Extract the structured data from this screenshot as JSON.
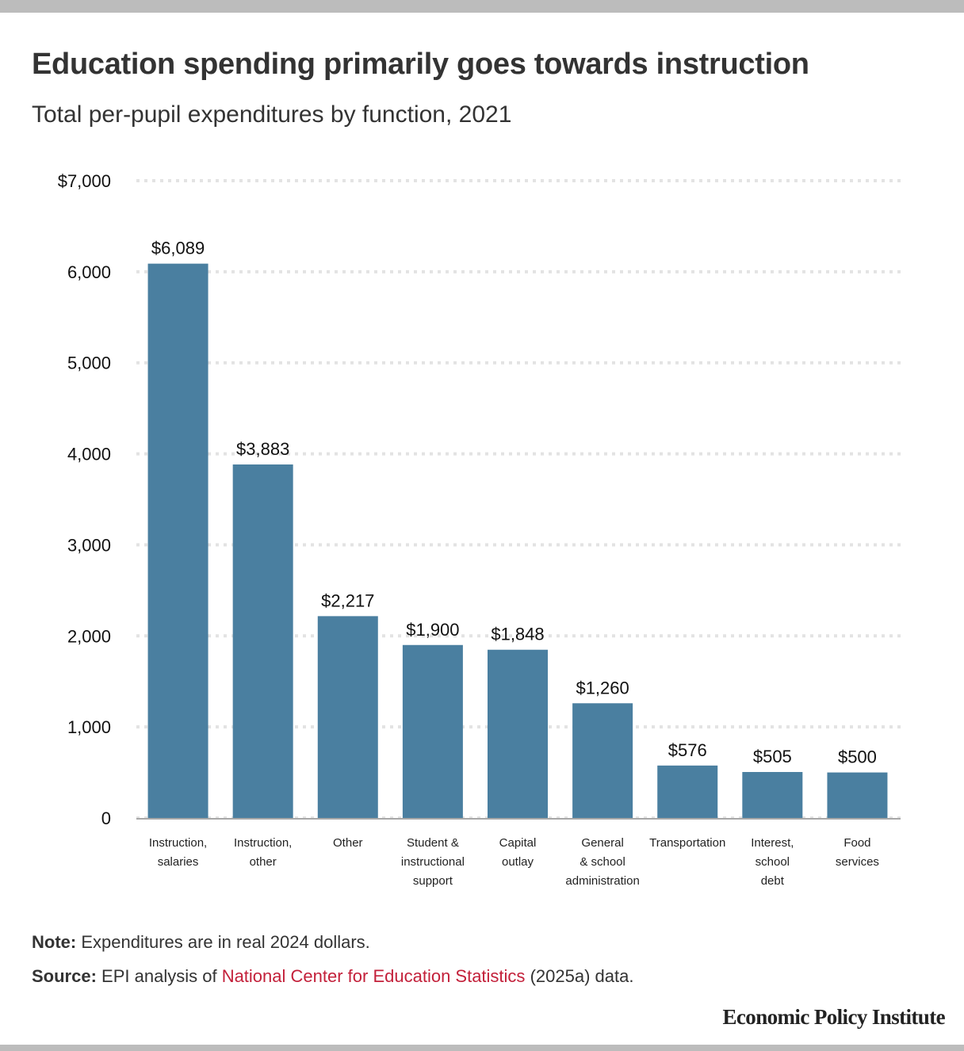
{
  "title": "Education spending primarily goes towards instruction",
  "subtitle": "Total per-pupil expenditures by function, 2021",
  "note": {
    "label": "Note:",
    "text": "Expenditures are in real 2024 dollars."
  },
  "source": {
    "label": "Source:",
    "prefix": "EPI analysis of",
    "link_text": "National Center for Education Statistics",
    "suffix": "(2025a) data."
  },
  "brand": "Economic Policy Institute",
  "colors": {
    "bar": "#4a7fa0",
    "grid": "#e3e3e3",
    "baseline": "#a8a8a8",
    "link": "#c3203a"
  },
  "chart_data": {
    "type": "bar",
    "title": "Education spending primarily goes towards instruction",
    "subtitle": "Total per-pupil expenditures by function, 2021",
    "xlabel": "",
    "ylabel": "",
    "ylim": [
      0,
      7000
    ],
    "yticks": [
      0,
      1000,
      2000,
      3000,
      4000,
      5000,
      6000,
      7000
    ],
    "ytick_labels": [
      "0",
      "1,000",
      "2,000",
      "3,000",
      "4,000",
      "5,000",
      "6,000",
      "$7,000"
    ],
    "grid": true,
    "categories": [
      [
        "Instruction,",
        "salaries"
      ],
      [
        "Instruction,",
        "other"
      ],
      [
        "Other"
      ],
      [
        "Student &",
        "instructional",
        "support"
      ],
      [
        "Capital",
        "outlay"
      ],
      [
        "General",
        "& school",
        "administration"
      ],
      [
        "Transportation"
      ],
      [
        "Interest,",
        "school",
        "debt"
      ],
      [
        "Food",
        "services"
      ]
    ],
    "values": [
      6089,
      3883,
      2217,
      1900,
      1848,
      1260,
      576,
      505,
      500
    ],
    "value_labels": [
      "$6,089",
      "$3,883",
      "$2,217",
      "$1,900",
      "$1,848",
      "$1,260",
      "$576",
      "$505",
      "$500"
    ]
  }
}
